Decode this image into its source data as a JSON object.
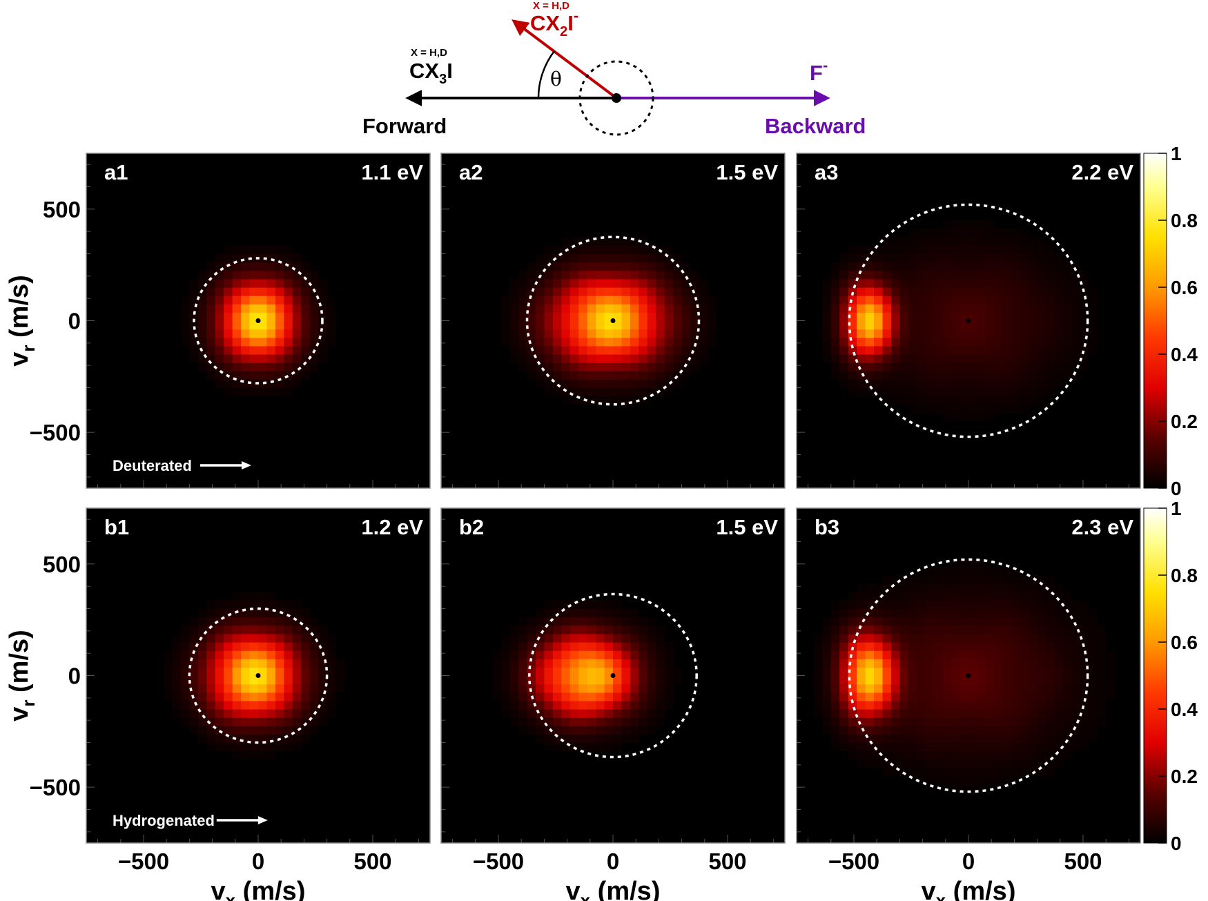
{
  "colors": {
    "background": "#ffffff",
    "panel_bg": "#000000",
    "forward_arrow": "#000000",
    "cx2i_arrow": "#c00000",
    "f_arrow": "#6a0dad",
    "circle": "#ffffff"
  },
  "schematic": {
    "cx3i_super": "X = H,D",
    "cx3i_label": "CX",
    "cx3i_sub": "3",
    "cx3i_tail": "I",
    "cx2i_super": "X = H,D",
    "cx2i_label": "CX",
    "cx2i_sub": "2",
    "cx2i_tail": "I",
    "cx2i_charge": "-",
    "f_label": "F",
    "f_charge": "-",
    "theta": "θ",
    "forward": "Forward",
    "backward": "Backward"
  },
  "chart_data": [
    {
      "id": "a1",
      "type": "heatmap",
      "row": "a",
      "energy": "1.1 eV",
      "label": "a1",
      "note": "Deuterated",
      "circle_radius": 280,
      "xlim": [
        -750,
        750
      ],
      "ylim": [
        -750,
        750
      ],
      "blobs": [
        {
          "vx": 0,
          "vr": 0,
          "sx": 180,
          "sr": 190,
          "peak": 0.78
        }
      ],
      "rings": []
    },
    {
      "id": "a2",
      "type": "heatmap",
      "row": "a",
      "energy": "1.5 eV",
      "label": "a2",
      "circle_radius": 375,
      "xlim": [
        -750,
        750
      ],
      "ylim": [
        -750,
        750
      ],
      "blobs": [
        {
          "vx": -20,
          "vr": 0,
          "sx": 260,
          "sr": 210,
          "peak": 0.76
        }
      ],
      "rings": []
    },
    {
      "id": "a3",
      "type": "heatmap",
      "row": "a",
      "energy": "2.2 eV",
      "label": "a3",
      "circle_radius": 520,
      "xlim": [
        -750,
        750
      ],
      "ylim": [
        -750,
        750
      ],
      "blobs": [
        {
          "vx": -440,
          "vr": 0,
          "sx": 110,
          "sr": 170,
          "peak": 0.72
        },
        {
          "vx": 0,
          "vr": 0,
          "sx": 420,
          "sr": 330,
          "peak": 0.12
        }
      ],
      "rings": []
    },
    {
      "id": "b1",
      "type": "heatmap",
      "row": "b",
      "energy": "1.2 eV",
      "label": "b1",
      "note": "Hydrogenated",
      "circle_radius": 300,
      "xlim": [
        -750,
        750
      ],
      "ylim": [
        -750,
        750
      ],
      "blobs": [
        {
          "vx": -20,
          "vr": 0,
          "sx": 210,
          "sr": 200,
          "peak": 0.78
        }
      ],
      "rings": []
    },
    {
      "id": "b2",
      "type": "heatmap",
      "row": "b",
      "energy": "1.5 eV",
      "label": "b2",
      "circle_radius": 365,
      "xlim": [
        -750,
        750
      ],
      "ylim": [
        -750,
        750
      ],
      "blobs": [
        {
          "vx": -120,
          "vr": 0,
          "sx": 220,
          "sr": 190,
          "peak": 0.76
        }
      ],
      "rings": []
    },
    {
      "id": "b3",
      "type": "heatmap",
      "row": "b",
      "energy": "2.3 eV",
      "label": "b3",
      "circle_radius": 520,
      "xlim": [
        -750,
        750
      ],
      "ylim": [
        -750,
        750
      ],
      "blobs": [
        {
          "vx": -440,
          "vr": 0,
          "sx": 120,
          "sr": 190,
          "peak": 0.72
        },
        {
          "vx": 0,
          "vr": 0,
          "sx": 450,
          "sr": 360,
          "peak": 0.15
        }
      ],
      "rings": []
    }
  ],
  "axes": {
    "xlabel_main": "v",
    "xlabel_sub": "x",
    "xlabel_unit": " (m/s)",
    "ylabel_main": "v",
    "ylabel_sub": "r",
    "ylabel_unit": " (m/s)",
    "xticks": [
      -500,
      0,
      500
    ],
    "xtick_labels": [
      "−500",
      "0",
      "500"
    ],
    "yticks": [
      500,
      0,
      -500
    ],
    "ytick_labels": [
      "500",
      "0",
      "−500"
    ]
  },
  "colorbar": {
    "ticks": [
      0,
      0.2,
      0.4,
      0.6,
      0.8,
      1
    ],
    "tick_labels": [
      "0",
      "0.2",
      "0.4",
      "0.6",
      "0.8",
      "1"
    ],
    "range": [
      0,
      1
    ]
  }
}
